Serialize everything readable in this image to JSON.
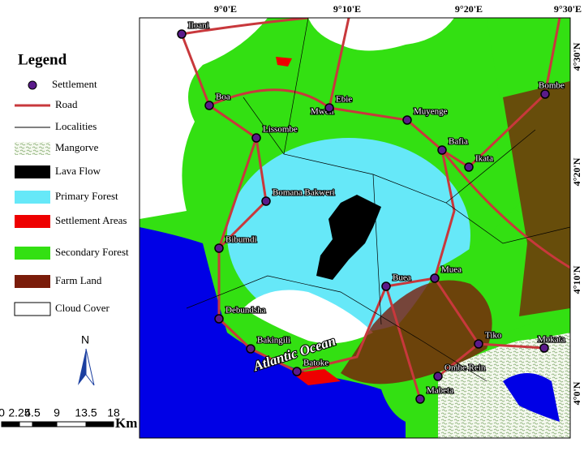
{
  "legend": {
    "title": "Legend",
    "items": [
      "Settlement",
      "Road",
      "Localities",
      "Mangorve",
      "Lava Flow",
      "Primary Forest",
      "Settlement Areas",
      "Secondary Forest",
      "Farm Land",
      "Cloud Cover"
    ]
  },
  "longitudes": [
    "9°0'E",
    "9°10'E",
    "9°20'E",
    "9°30'E"
  ],
  "latitudes": [
    "4°30'N",
    "4°20'N",
    "4°10'N",
    "4°0'N"
  ],
  "settlements": [
    "Iloani",
    "Boa",
    "Mweli",
    "Lissombe",
    "Ebie",
    "Muyenge",
    "Bombe",
    "Bafia",
    "Ikata",
    "Bomana Bakweri",
    "Bibumdi",
    "Buea",
    "Muea",
    "Debundsha",
    "Bakingili",
    "Batoke",
    "Tiko",
    "Mokata",
    "Ombe Rein",
    "Mabeta"
  ],
  "ocean_label": "Atlantic Ocean",
  "north_label": "N",
  "scale": {
    "labels": [
      "0",
      "2.25",
      "4.5",
      "9",
      "13.5",
      "18"
    ],
    "unit": "Km"
  }
}
